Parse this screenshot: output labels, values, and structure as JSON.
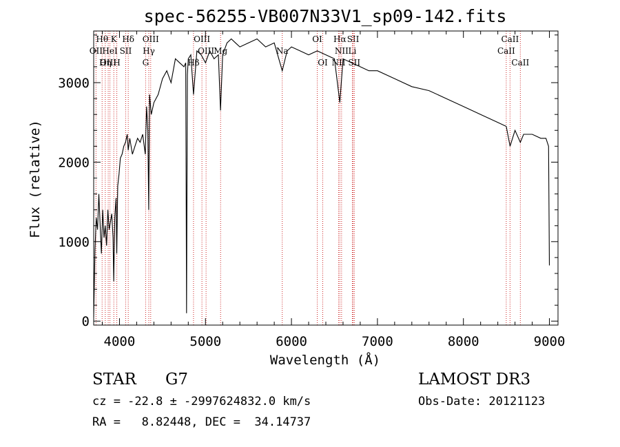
{
  "chart_data": {
    "type": "line",
    "title": "spec-56255-VB007N33V1_sp09-142.fits",
    "xlabel": "Wavelength (Å)",
    "ylabel": "Flux (relative)",
    "xlim": [
      3700,
      9100
    ],
    "ylim": [
      -50,
      3650
    ],
    "xticks": [
      4000,
      5000,
      6000,
      7000,
      8000,
      9000
    ],
    "yticks": [
      0,
      1000,
      2000,
      3000
    ],
    "series": [
      {
        "name": "flux",
        "x": [
          3700,
          3715,
          3730,
          3745,
          3760,
          3775,
          3790,
          3805,
          3820,
          3835,
          3850,
          3865,
          3880,
          3895,
          3910,
          3925,
          3933,
          3945,
          3960,
          3968,
          3980,
          3995,
          4010,
          4030,
          4050,
          4070,
          4090,
          4101,
          4120,
          4150,
          4180,
          4210,
          4240,
          4270,
          4300,
          4315,
          4330,
          4340,
          4350,
          4370,
          4400,
          4450,
          4500,
          4550,
          4600,
          4650,
          4700,
          4750,
          4770,
          4780,
          4790,
          4800,
          4830,
          4861,
          4900,
          4950,
          5000,
          5050,
          5100,
          5150,
          5175,
          5200,
          5250,
          5300,
          5350,
          5400,
          5500,
          5600,
          5700,
          5800,
          5893,
          5950,
          6000,
          6100,
          6200,
          6300,
          6400,
          6500,
          6563,
          6600,
          6700,
          6800,
          6900,
          7000,
          7200,
          7400,
          7600,
          7800,
          8000,
          8200,
          8400,
          8498,
          8542,
          8600,
          8662,
          8700,
          8800,
          8900,
          8960,
          8990,
          9000
        ],
        "values": [
          50,
          900,
          1300,
          1150,
          1600,
          1200,
          850,
          1400,
          1050,
          1200,
          950,
          1400,
          1150,
          1250,
          1350,
          1050,
          500,
          1300,
          1550,
          850,
          1700,
          1850,
          2050,
          2100,
          2200,
          2250,
          2350,
          2150,
          2300,
          2100,
          2200,
          2300,
          2250,
          2350,
          2100,
          2700,
          2400,
          1400,
          2850,
          2600,
          2750,
          2850,
          3050,
          3150,
          3000,
          3300,
          3250,
          3200,
          3250,
          100,
          3100,
          3300,
          3350,
          2850,
          3400,
          3350,
          3250,
          3400,
          3300,
          3350,
          2650,
          3350,
          3500,
          3550,
          3500,
          3450,
          3500,
          3550,
          3450,
          3500,
          3150,
          3400,
          3450,
          3400,
          3350,
          3400,
          3350,
          3300,
          2750,
          3300,
          3250,
          3200,
          3150,
          3150,
          3050,
          2950,
          2900,
          2800,
          2700,
          2600,
          2500,
          2450,
          2200,
          2400,
          2250,
          2350,
          2350,
          2300,
          2300,
          2200,
          700
        ]
      }
    ],
    "spectral_lines": [
      {
        "name": "Hθ",
        "wavelength": 3798,
        "row": 1
      },
      {
        "name": "OII",
        "wavelength": 3727,
        "row": 2
      },
      {
        "name": "OIII",
        "wavelength": 3869,
        "row": 3
      },
      {
        "name": "HeI",
        "wavelength": 3889,
        "row": 2
      },
      {
        "name": "K",
        "wavelength": 3934,
        "row": 1
      },
      {
        "name": "Hη",
        "wavelength": 3835,
        "row": 3
      },
      {
        "name": "SII",
        "wavelength": 4072,
        "row": 2
      },
      {
        "name": "H",
        "wavelength": 3969,
        "row": 3
      },
      {
        "name": "Hδ",
        "wavelength": 4102,
        "row": 1
      },
      {
        "name": "OIII",
        "wavelength": 4363,
        "row": 1
      },
      {
        "name": "Hγ",
        "wavelength": 4341,
        "row": 2
      },
      {
        "name": "G",
        "wavelength": 4304,
        "row": 3
      },
      {
        "name": "Hβ",
        "wavelength": 4861,
        "row": 3
      },
      {
        "name": "OIII",
        "wavelength": 4959,
        "row": 1
      },
      {
        "name": "OIII",
        "wavelength": 5007,
        "row": 2
      },
      {
        "name": "Mg",
        "wavelength": 5176,
        "row": 2
      },
      {
        "name": "Na",
        "wavelength": 5893,
        "row": 2
      },
      {
        "name": "OI",
        "wavelength": 6300,
        "row": 1
      },
      {
        "name": "OI",
        "wavelength": 6364,
        "row": 3
      },
      {
        "name": "Hα",
        "wavelength": 6563,
        "row": 1
      },
      {
        "name": "NII",
        "wavelength": 6583,
        "row": 2
      },
      {
        "name": "SII",
        "wavelength": 6717,
        "row": 1
      },
      {
        "name": "Li",
        "wavelength": 6708,
        "row": 2
      },
      {
        "name": "NII",
        "wavelength": 6548,
        "row": 3
      },
      {
        "name": "SII",
        "wavelength": 6731,
        "row": 3
      },
      {
        "name": "CaII",
        "wavelength": 8542,
        "row": 1
      },
      {
        "name": "CaII",
        "wavelength": 8498,
        "row": 2
      },
      {
        "name": "CaII",
        "wavelength": 8662,
        "row": 3
      }
    ]
  },
  "info": {
    "class": "STAR",
    "subclass": "G7",
    "survey": "LAMOST DR3",
    "redshift": "cz = -22.8 ± -2997624832.0 km/s",
    "obs_date": "Obs-Date: 20121123",
    "coords": "RA =   8.82448, DEC =  34.14737"
  },
  "colors": {
    "line_marker": "#cc2222",
    "spectrum": "#000000"
  }
}
